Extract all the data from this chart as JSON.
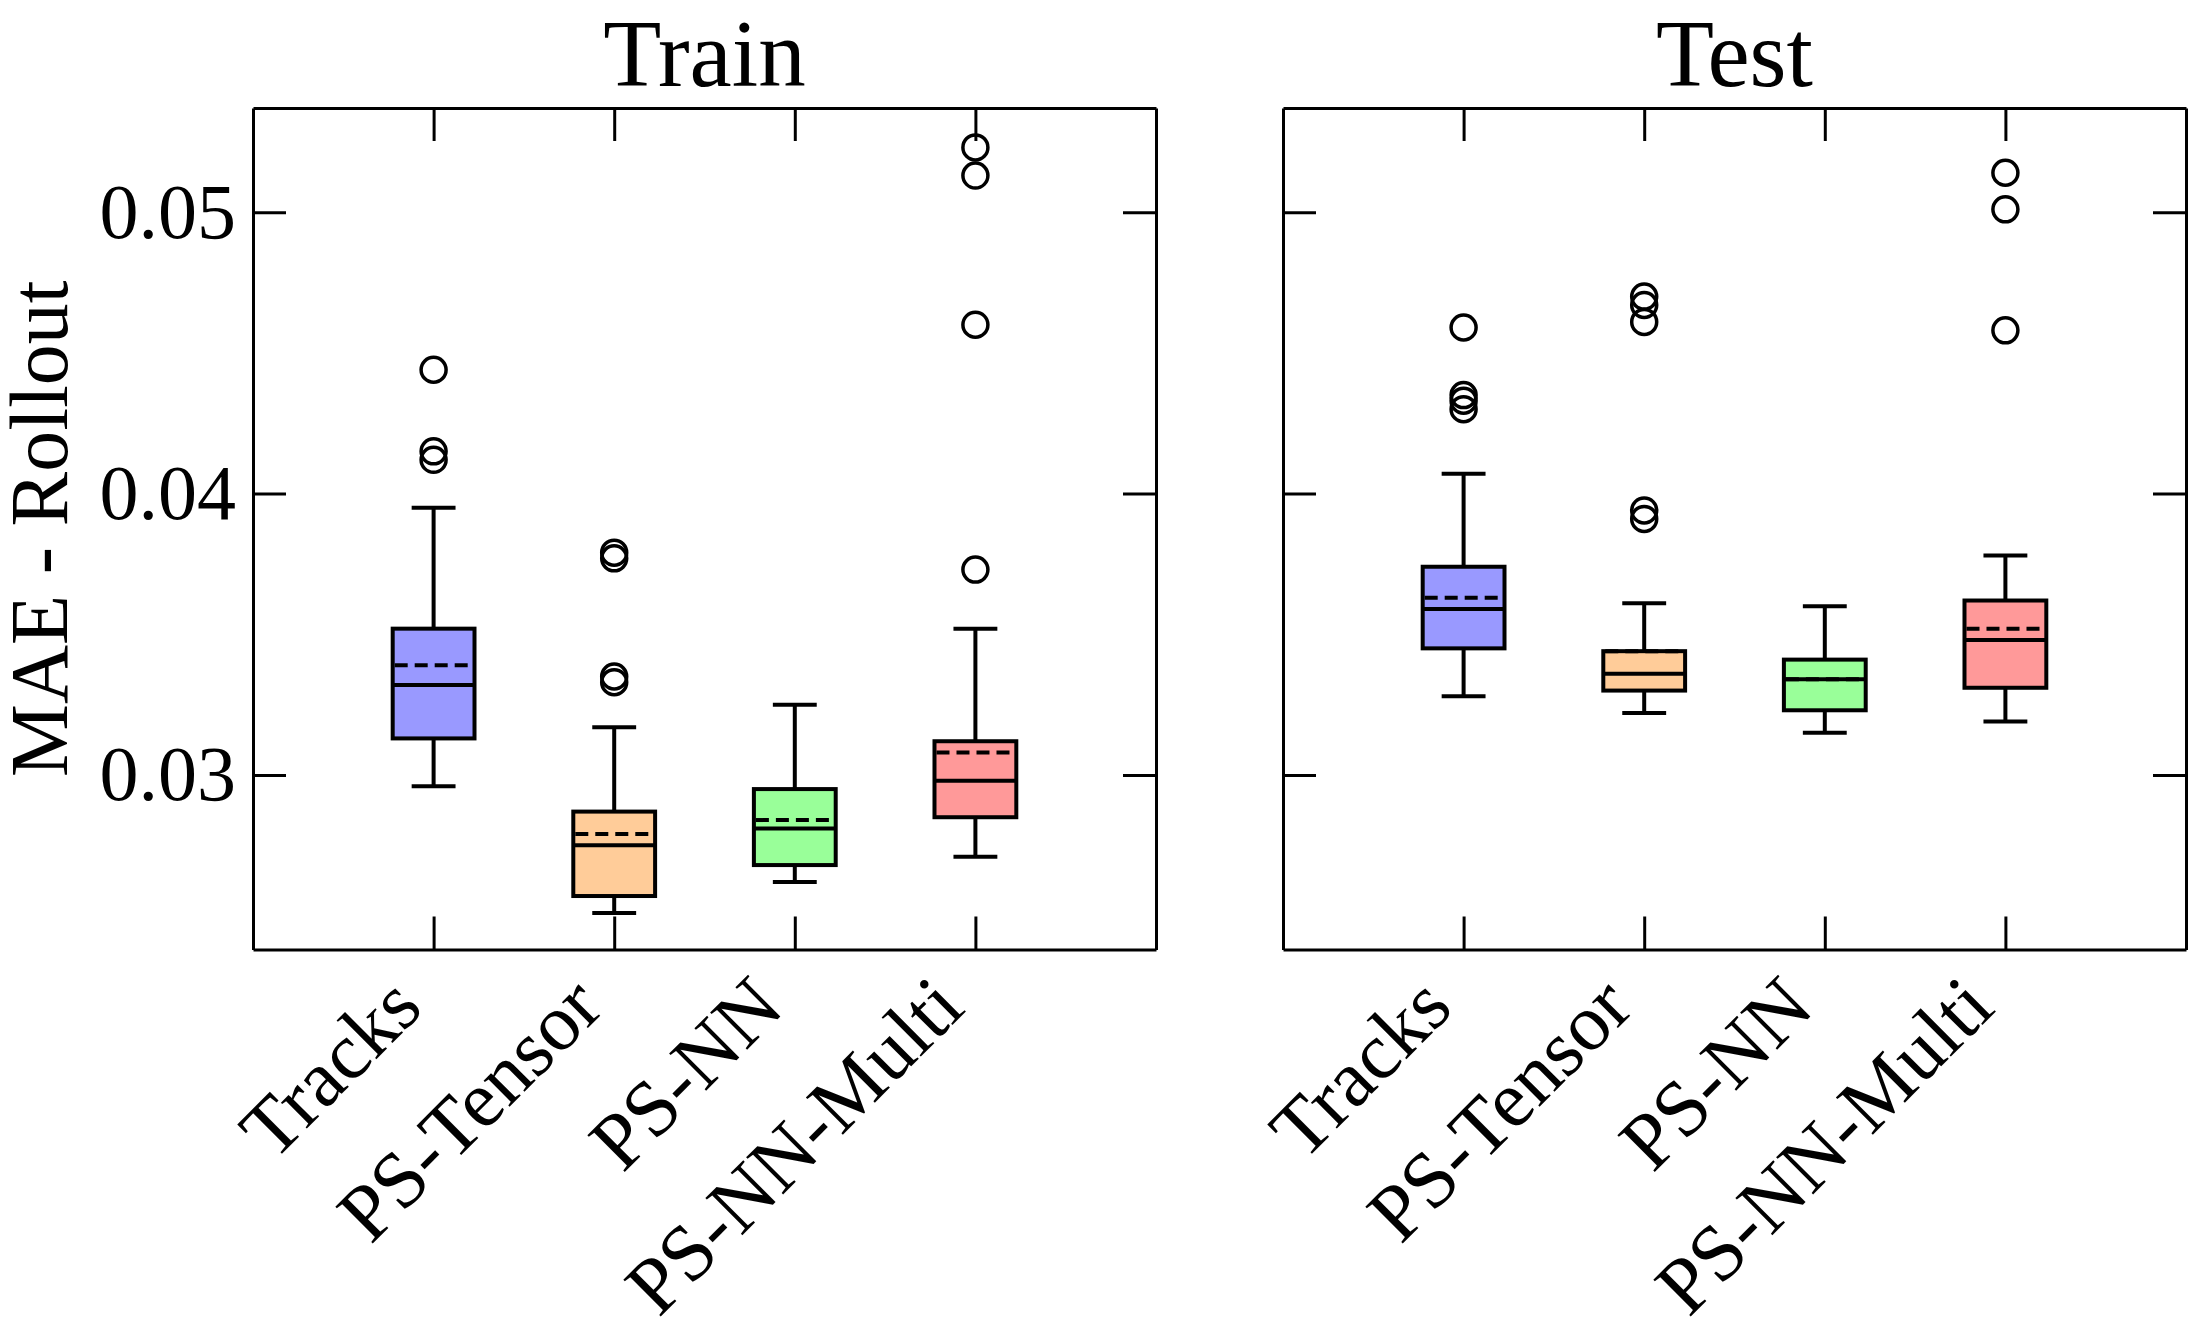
{
  "chart_data": [
    {
      "type": "box",
      "title": "Train",
      "ylabel": "MAE - Rollout",
      "categories": [
        "Tracks",
        "PS-Tensor",
        "PS-NN",
        "PS-NN-Multi"
      ],
      "colors": [
        "#9999ff",
        "#ffcc99",
        "#99ff99",
        "#ff9999"
      ],
      "boxes": [
        {
          "low": 0.0296,
          "q1": 0.0313,
          "median": 0.0332,
          "q3": 0.0352,
          "high": 0.0395,
          "mean": 0.0339,
          "outliers": [
            0.0444,
            0.0415,
            0.0412
          ]
        },
        {
          "low": 0.0251,
          "q1": 0.0257,
          "median": 0.0275,
          "q3": 0.0287,
          "high": 0.0317,
          "mean": 0.0279,
          "outliers": [
            0.0379,
            0.0377,
            0.0335,
            0.0333
          ]
        },
        {
          "low": 0.0262,
          "q1": 0.0268,
          "median": 0.0281,
          "q3": 0.0295,
          "high": 0.0325,
          "mean": 0.0284
        },
        {
          "low": 0.0271,
          "q1": 0.0285,
          "median": 0.0298,
          "q3": 0.0312,
          "high": 0.0352,
          "mean": 0.0308,
          "outliers": [
            0.0523,
            0.0513,
            0.046,
            0.0373
          ]
        }
      ],
      "ylim": [
        0.0238,
        0.0537
      ],
      "yticks": [
        0.03,
        0.04,
        0.05
      ]
    },
    {
      "type": "box",
      "title": "Test",
      "categories": [
        "Tracks",
        "PS-Tensor",
        "PS-NN",
        "PS-NN-Multi"
      ],
      "colors": [
        "#9999ff",
        "#ffcc99",
        "#99ff99",
        "#ff9999"
      ],
      "boxes": [
        {
          "low": 0.0328,
          "q1": 0.0345,
          "median": 0.0359,
          "q3": 0.0374,
          "high": 0.0407,
          "mean": 0.0363,
          "outliers": [
            0.0459,
            0.0435,
            0.0433,
            0.043
          ]
        },
        {
          "low": 0.0322,
          "q1": 0.033,
          "median": 0.0336,
          "q3": 0.0344,
          "high": 0.0361,
          "mean": 0.0344,
          "outliers": [
            0.047,
            0.0467,
            0.0461,
            0.0394,
            0.0391
          ]
        },
        {
          "low": 0.0315,
          "q1": 0.0323,
          "median": 0.0334,
          "q3": 0.0341,
          "high": 0.036,
          "mean": 0.0334
        },
        {
          "low": 0.0319,
          "q1": 0.0331,
          "median": 0.0348,
          "q3": 0.0362,
          "high": 0.0378,
          "mean": 0.0352,
          "outliers": [
            0.0514,
            0.0501,
            0.0458
          ]
        }
      ],
      "ylim": [
        0.0238,
        0.0537
      ],
      "yticks": [
        0.03,
        0.04,
        0.05
      ],
      "tick_labels": "x"
    }
  ]
}
